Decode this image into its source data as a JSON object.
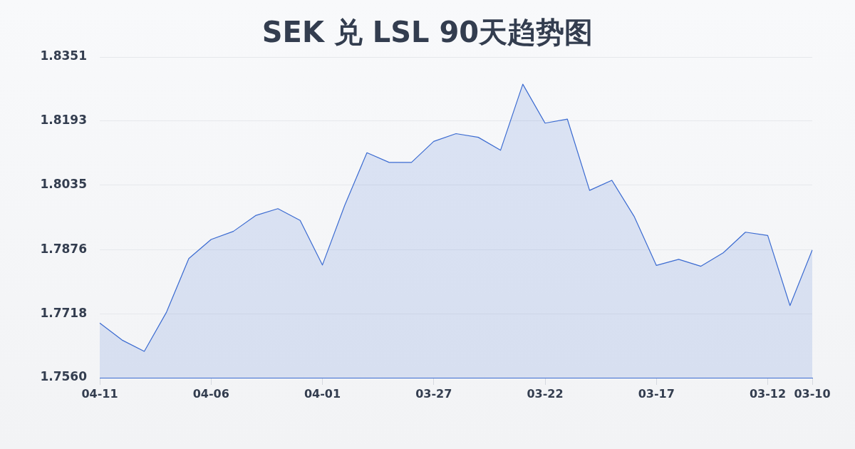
{
  "chart_data": {
    "type": "area",
    "title": "SEK 兑 LSL 90天趋势图",
    "categories": [
      "04-11",
      null,
      null,
      null,
      null,
      "04-06",
      null,
      null,
      null,
      null,
      "04-01",
      null,
      null,
      null,
      null,
      "03-27",
      null,
      null,
      null,
      null,
      "03-22",
      null,
      null,
      null,
      null,
      "03-17",
      null,
      null,
      null,
      null,
      "03-12",
      null,
      "03-10"
    ],
    "values": [
      1.7695,
      1.7653,
      1.7625,
      1.7722,
      1.7854,
      1.7901,
      1.7921,
      1.796,
      1.7977,
      1.7948,
      1.7838,
      1.7985,
      1.8115,
      1.8091,
      1.8091,
      1.8143,
      1.8162,
      1.8153,
      1.8121,
      1.8284,
      1.8188,
      1.8198,
      1.8022,
      1.8047,
      1.7958,
      1.7837,
      1.7852,
      1.7835,
      1.7868,
      1.7919,
      1.7911,
      1.7738,
      1.7875
    ],
    "color": "#3b6bd1",
    "ylim": [
      1.756,
      1.8351
    ],
    "yticks": [
      {
        "value": 1.756,
        "label": "1.7560"
      },
      1.7718,
      1.7876,
      1.8035,
      1.8193,
      1.8351
    ],
    "grid": "y",
    "marker": "none"
  }
}
